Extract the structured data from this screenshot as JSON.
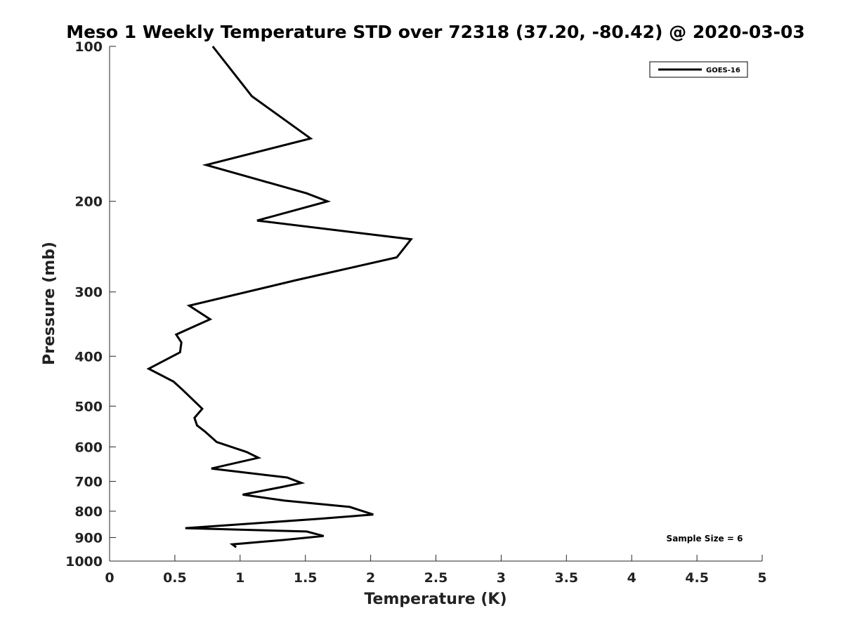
{
  "chart_data": {
    "type": "line",
    "title": "Meso 1 Weekly Temperature STD over 72318 (37.20, -80.42) @ 2020-03-03",
    "xlabel": "Temperature (K)",
    "ylabel": "Pressure (mb)",
    "xlim": [
      0,
      5
    ],
    "ylim": [
      100,
      1000
    ],
    "y_scale": "log",
    "y_reversed": true,
    "grid": false,
    "legend_position": "top-right",
    "x_ticks": [
      "0",
      "0.5",
      "1",
      "1.5",
      "2",
      "2.5",
      "3",
      "3.5",
      "4",
      "4.5",
      "5"
    ],
    "x_tick_values": [
      0,
      0.5,
      1,
      1.5,
      2,
      2.5,
      3,
      3.5,
      4,
      4.5,
      5
    ],
    "y_ticks": [
      "100",
      "200",
      "300",
      "400",
      "500",
      "600",
      "700",
      "800",
      "900",
      "1000"
    ],
    "y_tick_values": [
      100,
      200,
      300,
      400,
      500,
      600,
      700,
      800,
      900,
      1000
    ],
    "series": [
      {
        "name": "GOES-16",
        "color": "#000000",
        "points": [
          [
            0.79,
            100
          ],
          [
            1.09,
            125
          ],
          [
            1.54,
            151
          ],
          [
            0.74,
            170
          ],
          [
            1.51,
            193
          ],
          [
            1.67,
            200
          ],
          [
            1.13,
            218
          ],
          [
            2.31,
            237
          ],
          [
            2.2,
            257
          ],
          [
            1.42,
            285
          ],
          [
            0.61,
            319
          ],
          [
            0.77,
            339
          ],
          [
            0.51,
            363
          ],
          [
            0.55,
            376
          ],
          [
            0.54,
            393
          ],
          [
            0.3,
            423
          ],
          [
            0.49,
            448
          ],
          [
            0.56,
            465
          ],
          [
            0.71,
            506
          ],
          [
            0.65,
            527
          ],
          [
            0.67,
            545
          ],
          [
            0.73,
            560
          ],
          [
            0.82,
            587
          ],
          [
            1.05,
            614
          ],
          [
            1.14,
            630
          ],
          [
            0.78,
            661
          ],
          [
            1.36,
            688
          ],
          [
            1.47,
            705
          ],
          [
            1.32,
            718
          ],
          [
            1.02,
            743
          ],
          [
            1.34,
            763
          ],
          [
            1.84,
            785
          ],
          [
            2.02,
            812
          ],
          [
            1.6,
            828
          ],
          [
            0.58,
            863
          ],
          [
            1.51,
            876
          ],
          [
            1.64,
            894
          ],
          [
            1.33,
            910
          ],
          [
            0.94,
            928
          ],
          [
            0.97,
            940
          ]
        ]
      }
    ],
    "annotations": [
      "Sample Size = 6"
    ]
  }
}
